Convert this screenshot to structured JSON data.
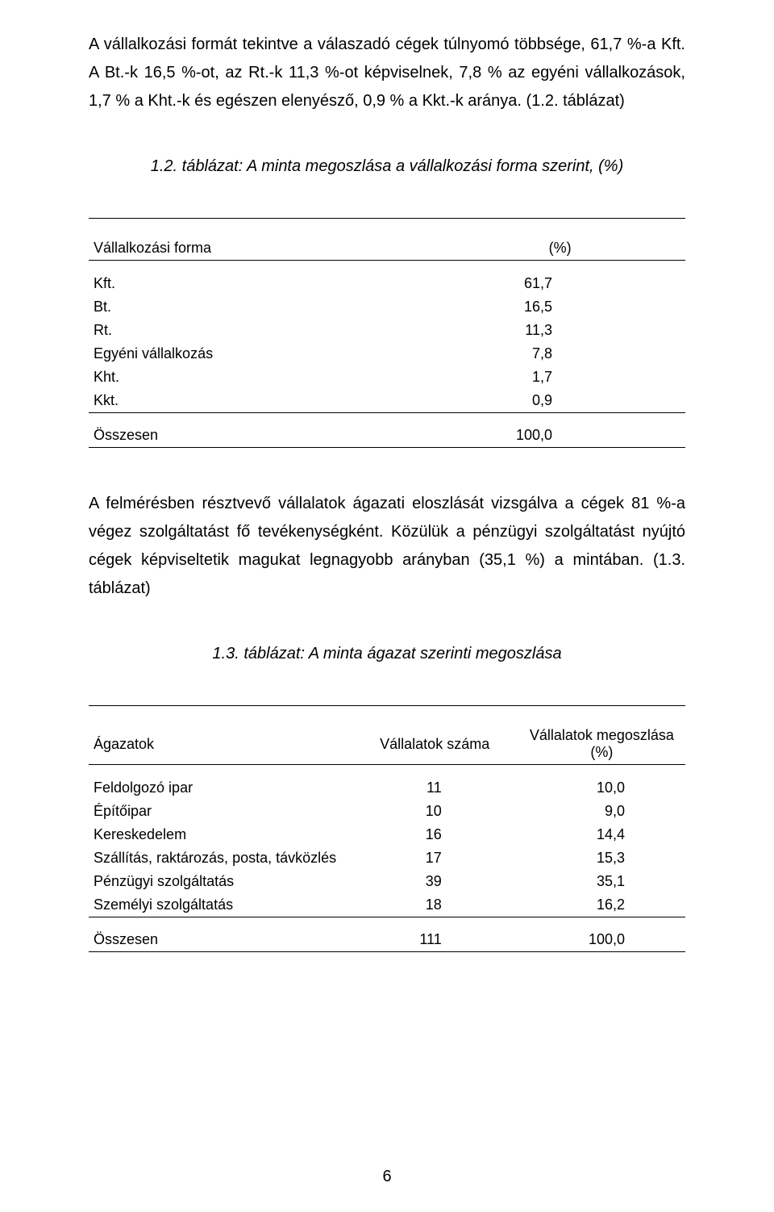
{
  "para1": "A vállalkozási formát tekintve a válaszadó cégek túlnyomó többsége, 61,7 %-a Kft. A Bt.-k 16,5 %-ot, az Rt.-k 11,3 %-ot képviselnek, 7,8 % az egyéni vállalkozások, 1,7 % a Kht.-k és egészen elenyésző, 0,9 % a Kkt.-k aránya. (1.2. táblázat)",
  "caption1": "1.2. táblázat: A minta megoszlása a vállalkozási forma szerint, (%)",
  "table1": {
    "head": {
      "c1": "Vállalkozási forma",
      "c2": "(%)"
    },
    "rows": [
      {
        "c1": "Kft.",
        "c2": "61,7"
      },
      {
        "c1": "Bt.",
        "c2": "16,5"
      },
      {
        "c1": "Rt.",
        "c2": "11,3"
      },
      {
        "c1": "Egyéni vállalkozás",
        "c2": "7,8"
      },
      {
        "c1": "Kht.",
        "c2": "1,7"
      },
      {
        "c1": "Kkt.",
        "c2": "0,9"
      }
    ],
    "total": {
      "c1": "Összesen",
      "c2": "100,0"
    }
  },
  "para2": "A felmérésben résztvevő vállalatok ágazati eloszlását vizsgálva a cégek 81 %-a végez szolgáltatást fő tevékenységként. Közülük a pénzügyi szolgáltatást nyújtó cégek képviseltetik magukat legnagyobb arányban (35,1 %) a mintában. (1.3. táblázat)",
  "caption2": "1.3. táblázat: A minta ágazat szerinti megoszlása",
  "table2": {
    "head": {
      "c1": "Ágazatok",
      "c2": "Vállalatok száma",
      "c3": "Vállalatok megoszlása (%)"
    },
    "rows": [
      {
        "c1": "Feldolgozó ipar",
        "c2": "11",
        "c3": "10,0"
      },
      {
        "c1": "Építőipar",
        "c2": "10",
        "c3": "9,0"
      },
      {
        "c1": "Kereskedelem",
        "c2": "16",
        "c3": "14,4"
      },
      {
        "c1": "Szállítás, raktározás, posta, távközlés",
        "c2": "17",
        "c3": "15,3"
      },
      {
        "c1": "Pénzügyi szolgáltatás",
        "c2": "39",
        "c3": "35,1"
      },
      {
        "c1": "Személyi szolgáltatás",
        "c2": "18",
        "c3": "16,2"
      }
    ],
    "total": {
      "c1": "Összesen",
      "c2": "111",
      "c3": "100,0"
    }
  },
  "pageNumber": "6"
}
